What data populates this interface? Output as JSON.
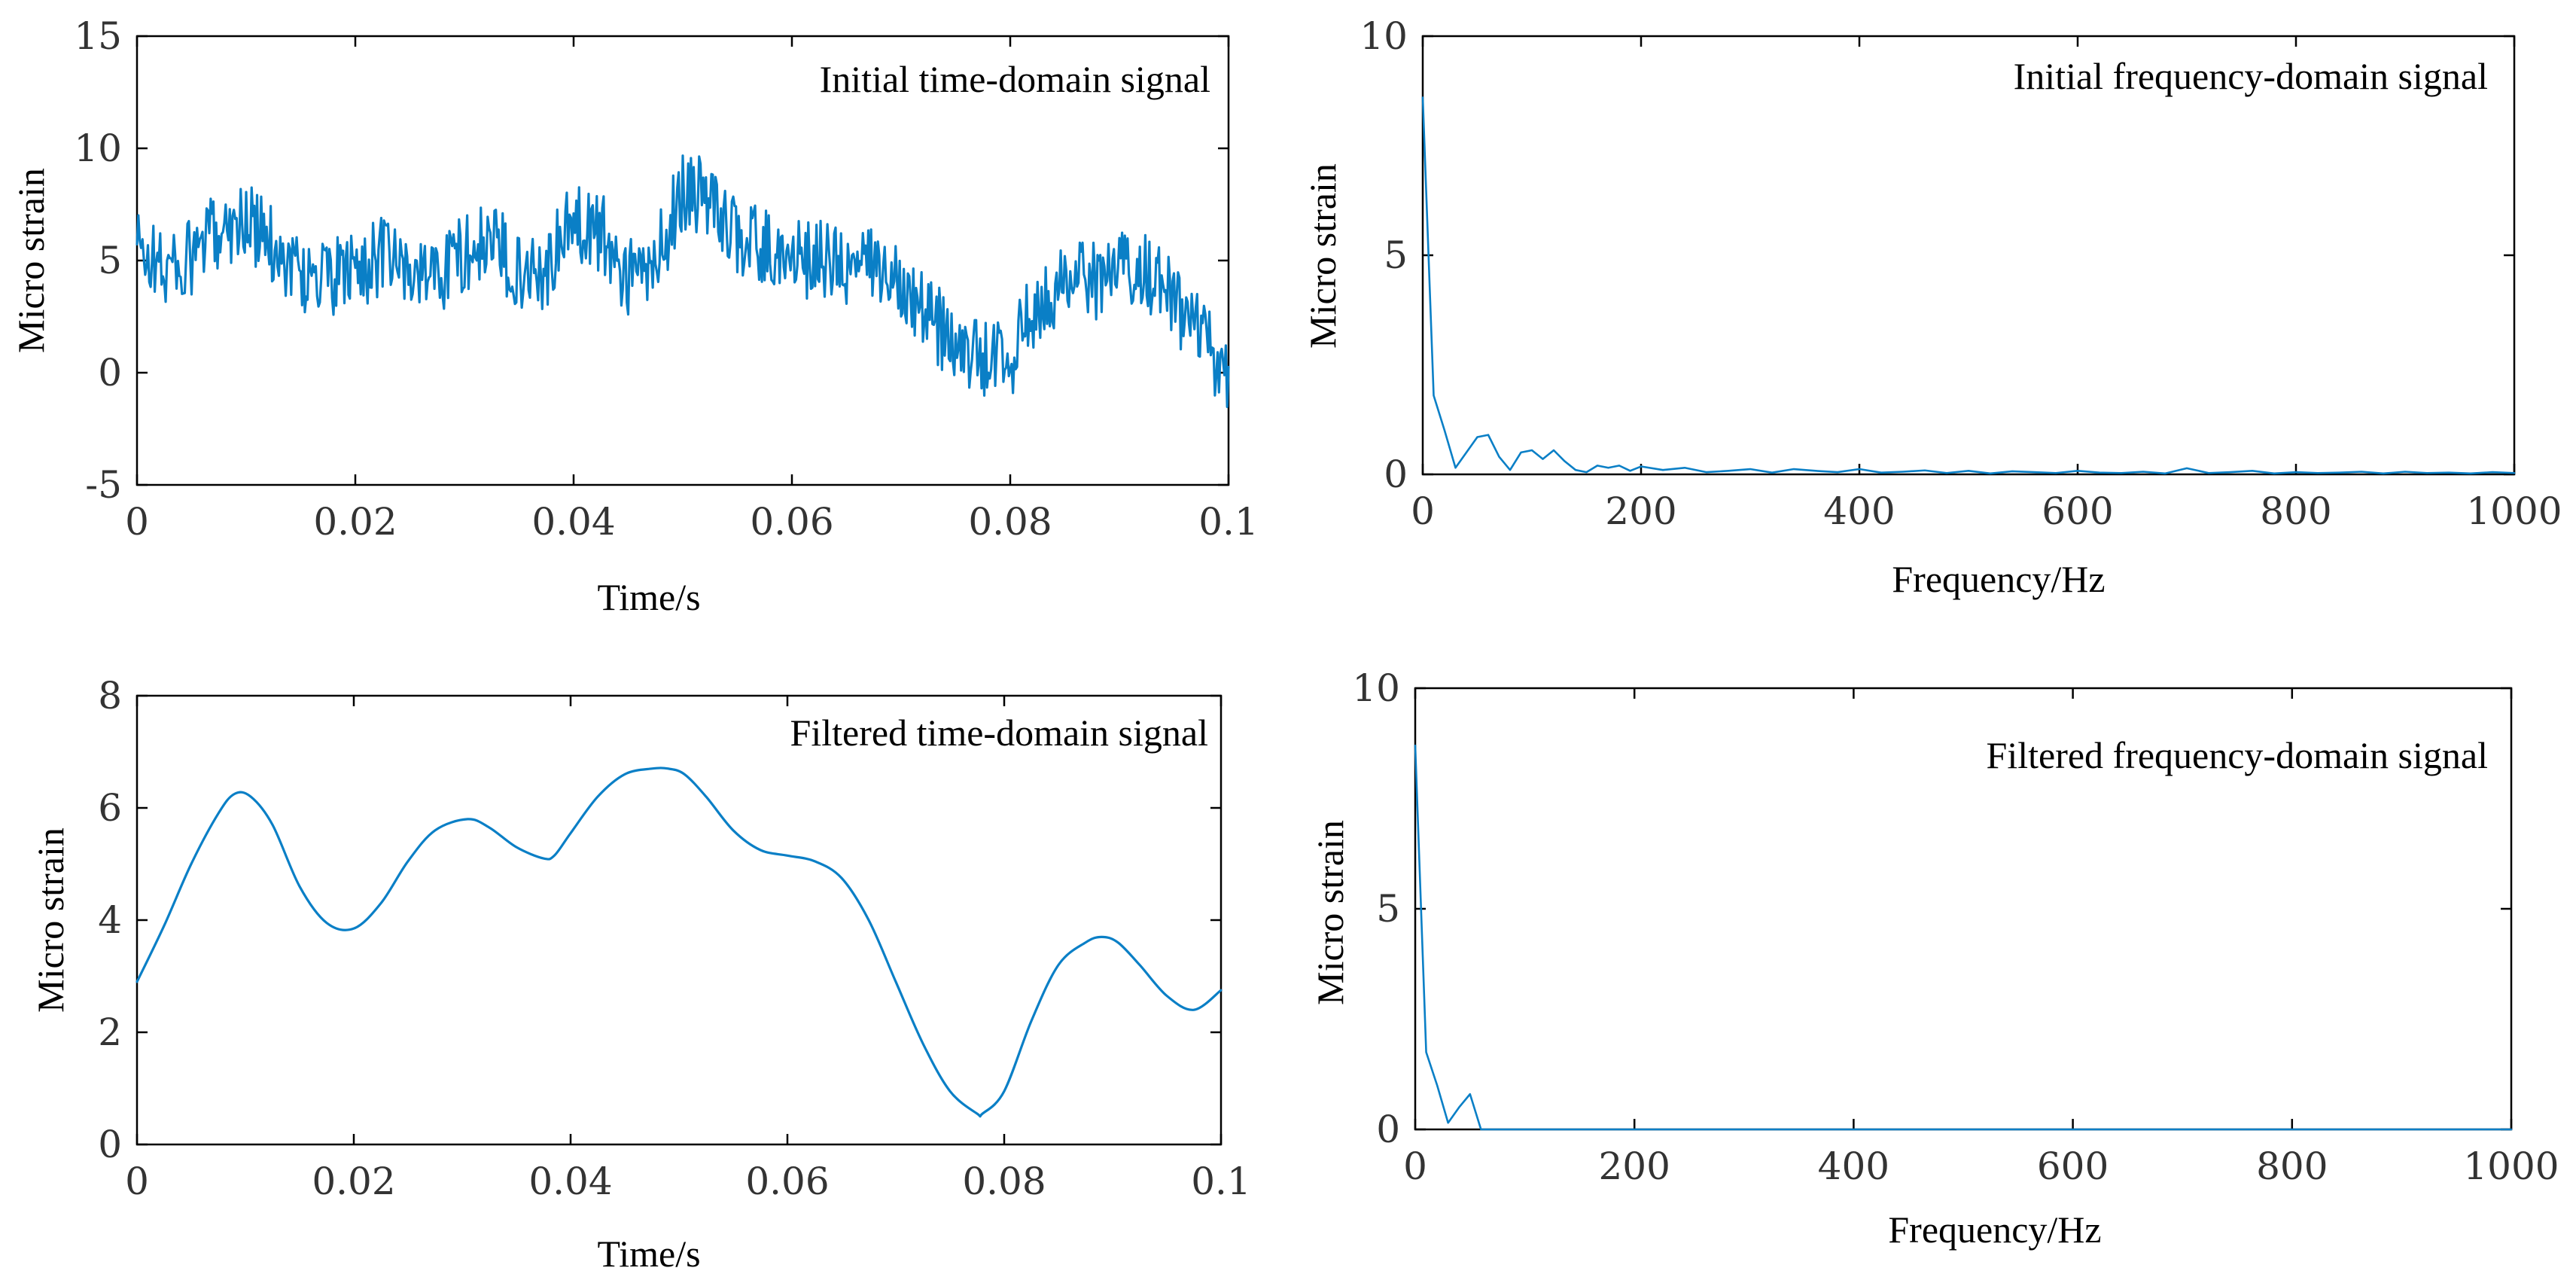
{
  "series_color": "#0a7fc6",
  "chart_data": [
    {
      "id": "initial-time",
      "type": "line",
      "title": "Initial time-domain signal",
      "xlabel": "Time/s",
      "ylabel": "Micro strain",
      "xlim": [
        0,
        0.1
      ],
      "ylim": [
        -5,
        15
      ],
      "xticks": [
        0,
        0.02,
        0.04,
        0.06,
        0.08,
        0.1
      ],
      "xtick_labels": [
        "0",
        "0.02",
        "0.04",
        "0.06",
        "0.08",
        "0.1"
      ],
      "yticks": [
        -5,
        0,
        5,
        10,
        15
      ],
      "ytick_labels": [
        "-5",
        "0",
        "5",
        "10",
        "15"
      ],
      "grid": false,
      "title_position": "top-right",
      "noise": "high-frequency noise of roughly ±1.8 micro strain superimposed on the smooth trend",
      "x": [
        0,
        0.0025,
        0.005,
        0.0075,
        0.01,
        0.0125,
        0.015,
        0.0175,
        0.02,
        0.0225,
        0.025,
        0.0275,
        0.03,
        0.0325,
        0.035,
        0.0375,
        0.04,
        0.0425,
        0.045,
        0.0475,
        0.05,
        0.0525,
        0.055,
        0.0575,
        0.06,
        0.0625,
        0.065,
        0.0675,
        0.07,
        0.0725,
        0.075,
        0.0775,
        0.08,
        0.0825,
        0.085,
        0.0875,
        0.09,
        0.0925,
        0.095,
        0.0975,
        0.1
      ],
      "values": [
        5.6,
        4.6,
        5.0,
        6.5,
        6.8,
        5.6,
        4.4,
        4.1,
        4.6,
        5.2,
        4.4,
        4.4,
        5.4,
        5.8,
        4.6,
        4.6,
        6.8,
        6.3,
        4.2,
        4.8,
        8.2,
        7.6,
        6.1,
        5.5,
        5.1,
        5.1,
        4.6,
        4.7,
        4.3,
        2.6,
        1.1,
        0.6,
        0.6,
        3.2,
        4.1,
        4.1,
        4.6,
        4.6,
        3.1,
        1.6,
        -0.5
      ]
    },
    {
      "id": "initial-frequency",
      "type": "line",
      "title": "Initial frequency-domain signal",
      "xlabel": "Frequency/Hz",
      "ylabel": "Micro strain",
      "xlim": [
        0,
        1000
      ],
      "ylim": [
        0,
        10
      ],
      "xticks": [
        0,
        200,
        400,
        600,
        800,
        1000
      ],
      "xtick_labels": [
        "0",
        "200",
        "400",
        "600",
        "800",
        "1000"
      ],
      "yticks": [
        0,
        5,
        10
      ],
      "ytick_labels": [
        "0",
        "5",
        "10"
      ],
      "grid": false,
      "title_position": "top-right",
      "x": [
        0,
        10,
        20,
        30,
        40,
        50,
        60,
        70,
        80,
        90,
        100,
        110,
        120,
        130,
        140,
        150,
        160,
        170,
        180,
        190,
        200,
        220,
        240,
        260,
        280,
        300,
        320,
        340,
        360,
        380,
        400,
        420,
        440,
        460,
        480,
        500,
        520,
        540,
        560,
        580,
        600,
        620,
        640,
        660,
        680,
        700,
        720,
        740,
        760,
        780,
        800,
        820,
        840,
        860,
        880,
        900,
        920,
        940,
        960,
        980,
        1000
      ],
      "values": [
        8.6,
        1.8,
        1.0,
        0.15,
        0.5,
        0.85,
        0.9,
        0.4,
        0.1,
        0.5,
        0.55,
        0.35,
        0.55,
        0.3,
        0.1,
        0.05,
        0.2,
        0.15,
        0.2,
        0.08,
        0.18,
        0.1,
        0.15,
        0.05,
        0.08,
        0.12,
        0.04,
        0.12,
        0.08,
        0.05,
        0.12,
        0.04,
        0.06,
        0.09,
        0.03,
        0.08,
        0.02,
        0.07,
        0.05,
        0.03,
        0.08,
        0.04,
        0.03,
        0.06,
        0.02,
        0.14,
        0.03,
        0.05,
        0.08,
        0.02,
        0.05,
        0.03,
        0.04,
        0.06,
        0.02,
        0.06,
        0.03,
        0.04,
        0.02,
        0.05,
        0.03
      ]
    },
    {
      "id": "filtered-time",
      "type": "line",
      "title": "Filtered time-domain signal",
      "xlabel": "Time/s",
      "ylabel": "Micro strain",
      "xlim": [
        0,
        0.1
      ],
      "ylim": [
        0,
        8
      ],
      "xticks": [
        0,
        0.02,
        0.04,
        0.06,
        0.08,
        0.1
      ],
      "xtick_labels": [
        "0",
        "0.02",
        "0.04",
        "0.06",
        "0.08",
        "0.1"
      ],
      "yticks": [
        0,
        2,
        4,
        6,
        8
      ],
      "ytick_labels": [
        "0",
        "2",
        "4",
        "6",
        "8"
      ],
      "grid": false,
      "title_position": "top-right",
      "x": [
        0,
        0.0025,
        0.005,
        0.0075,
        0.009,
        0.0105,
        0.0125,
        0.015,
        0.0175,
        0.02,
        0.0225,
        0.025,
        0.0275,
        0.0305,
        0.0325,
        0.035,
        0.0375,
        0.0385,
        0.04,
        0.0425,
        0.045,
        0.0475,
        0.049,
        0.0505,
        0.0525,
        0.055,
        0.0575,
        0.06,
        0.0625,
        0.065,
        0.0675,
        0.07,
        0.0725,
        0.075,
        0.0775,
        0.078,
        0.08,
        0.0825,
        0.085,
        0.0875,
        0.089,
        0.0905,
        0.0925,
        0.095,
        0.0975,
        0.1
      ],
      "values": [
        2.9,
        3.9,
        5.0,
        5.9,
        6.25,
        6.2,
        5.7,
        4.6,
        3.95,
        3.85,
        4.3,
        5.05,
        5.6,
        5.8,
        5.65,
        5.3,
        5.1,
        5.15,
        5.55,
        6.2,
        6.6,
        6.7,
        6.7,
        6.6,
        6.2,
        5.6,
        5.25,
        5.15,
        5.05,
        4.75,
        4.0,
        2.9,
        1.8,
        0.95,
        0.55,
        0.55,
        0.95,
        2.2,
        3.2,
        3.6,
        3.7,
        3.6,
        3.2,
        2.65,
        2.4,
        2.75
      ]
    },
    {
      "id": "filtered-frequency",
      "type": "line",
      "title": "Filtered frequency-domain signal",
      "xlabel": "Frequency/Hz",
      "ylabel": "Micro strain",
      "xlim": [
        0,
        1000
      ],
      "ylim": [
        0,
        10
      ],
      "xticks": [
        0,
        200,
        400,
        600,
        800,
        1000
      ],
      "xtick_labels": [
        "0",
        "200",
        "400",
        "600",
        "800",
        "1000"
      ],
      "yticks": [
        0,
        5,
        10
      ],
      "ytick_labels": [
        "0",
        "5",
        "10"
      ],
      "grid": false,
      "title_position": "top-right",
      "x": [
        0,
        10,
        20,
        30,
        40,
        50,
        60,
        70,
        100,
        200,
        400,
        600,
        800,
        1000
      ],
      "values": [
        8.7,
        1.75,
        1.0,
        0.15,
        0.5,
        0.8,
        0.0,
        0.0,
        0.0,
        0.0,
        0.0,
        0.0,
        0.0,
        0.0
      ]
    }
  ]
}
